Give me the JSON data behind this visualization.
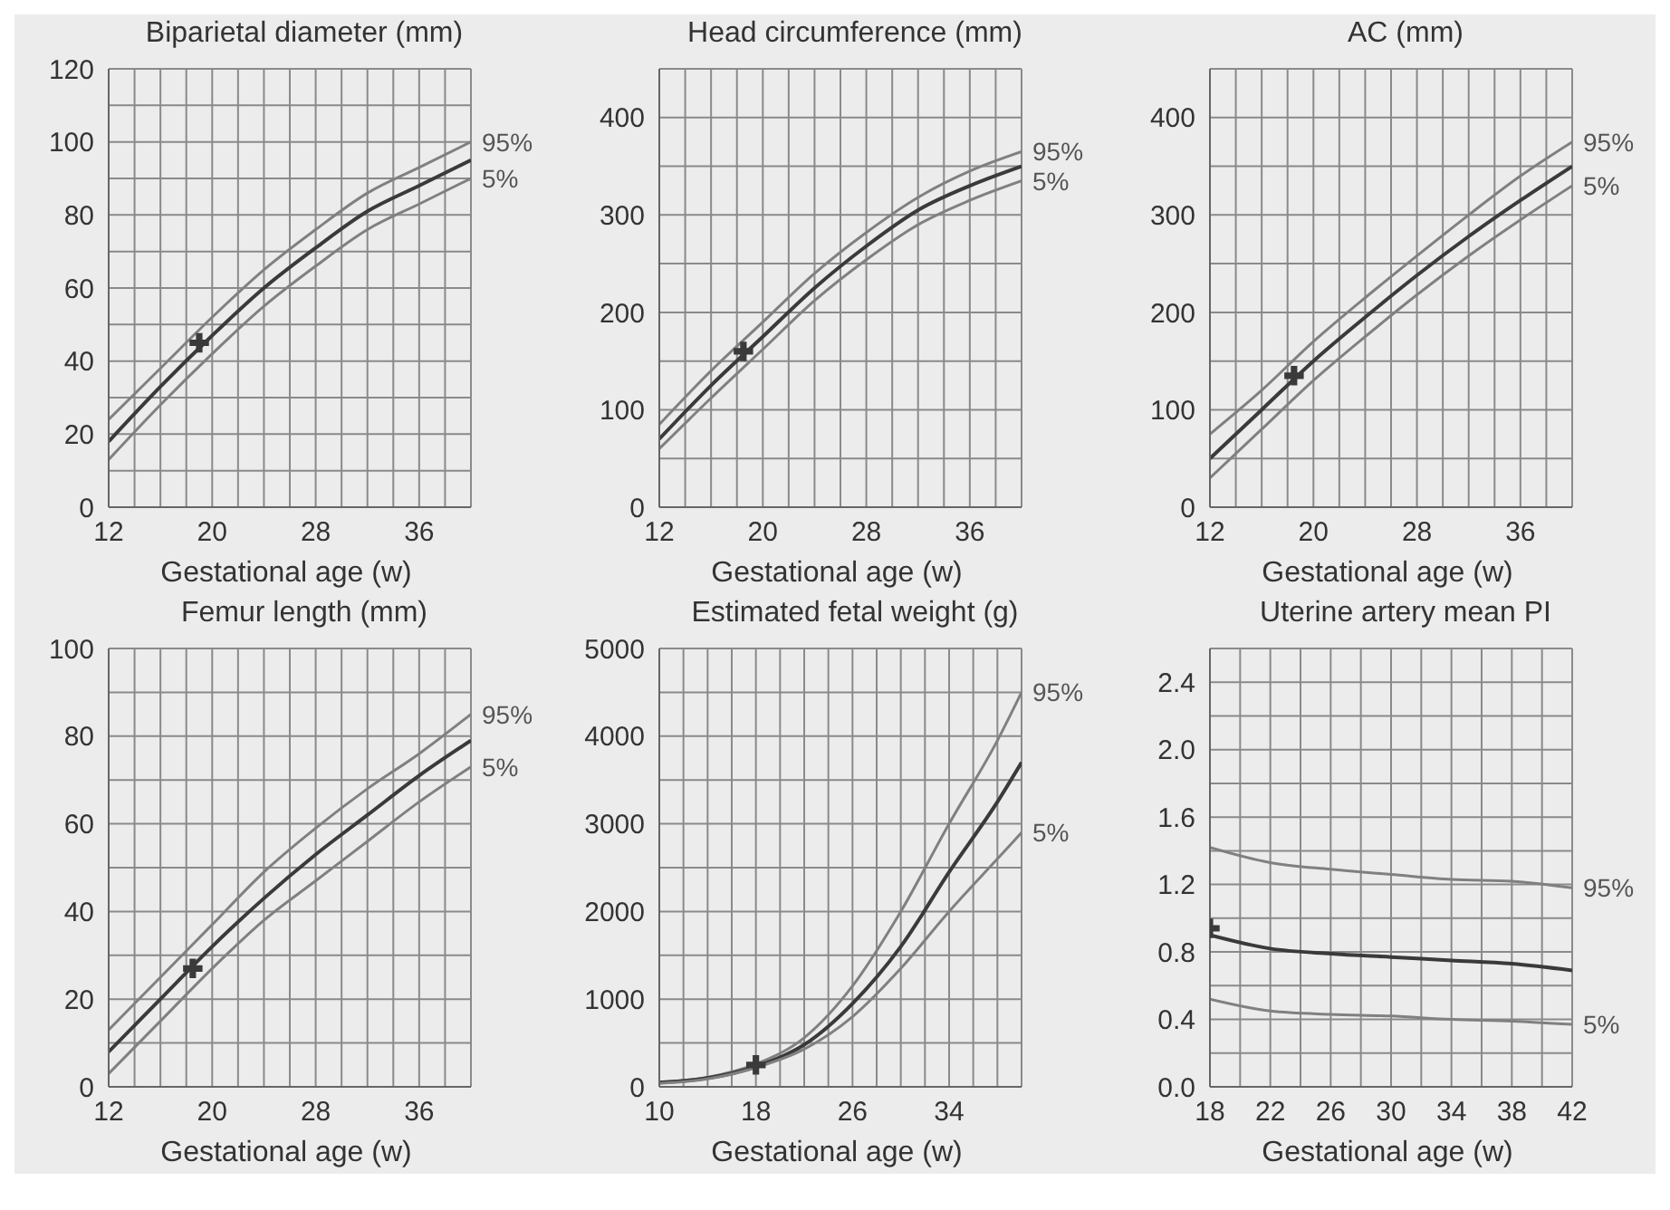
{
  "chart_data": [
    {
      "type": "line",
      "title": "Biparietal diameter (mm)",
      "xlabel": "Gestational age (w)",
      "xlim": [
        12,
        40
      ],
      "xticks": [
        12,
        {
          "value": 14,
          "label": null
        },
        {
          "value": 16,
          "label": null
        },
        {
          "value": 18,
          "label": null
        },
        20,
        {
          "value": 22,
          "label": null
        },
        {
          "value": 24,
          "label": null
        },
        {
          "value": 26,
          "label": null
        },
        28,
        {
          "value": 30,
          "label": null
        },
        {
          "value": 32,
          "label": null
        },
        {
          "value": 34,
          "label": null
        },
        36,
        {
          "value": 38,
          "label": null
        },
        {
          "value": 40,
          "label": null
        }
      ],
      "ylim": [
        0,
        120
      ],
      "yticks": [
        0,
        {
          "value": 10,
          "label": null
        },
        20,
        {
          "value": 30,
          "label": null
        },
        40,
        {
          "value": 50,
          "label": null
        },
        60,
        {
          "value": 70,
          "label": null
        },
        80,
        {
          "value": 90,
          "label": null
        },
        100,
        {
          "value": 110,
          "label": null
        },
        120
      ],
      "grid": true,
      "marker": "none",
      "series": [
        {
          "name": "95%",
          "color": "#808080",
          "x": [
            12,
            16,
            20,
            24,
            28,
            32,
            36,
            40
          ],
          "values": [
            24,
            38,
            52,
            65,
            76,
            86,
            93,
            100
          ]
        },
        {
          "color": "#3a3a3a",
          "x": [
            12,
            16,
            20,
            24,
            28,
            32,
            36,
            40
          ],
          "values": [
            18,
            33,
            47,
            60,
            71,
            81,
            88,
            95
          ]
        },
        {
          "name": "5%",
          "color": "#808080",
          "x": [
            12,
            16,
            20,
            24,
            28,
            32,
            36,
            40
          ],
          "values": [
            13,
            28,
            42,
            55,
            66,
            76,
            83,
            90
          ]
        },
        {
          "type": "scatter",
          "marker": "cross",
          "color": "#3a3a3a",
          "x": [
            19
          ],
          "values": [
            45
          ]
        }
      ]
    },
    {
      "type": "line",
      "title": "Head circumference (mm)",
      "xlabel": "Gestational age (w)",
      "xlim": [
        12,
        40
      ],
      "xticks": [
        12,
        {
          "value": 14,
          "label": null
        },
        {
          "value": 16,
          "label": null
        },
        {
          "value": 18,
          "label": null
        },
        20,
        {
          "value": 22,
          "label": null
        },
        {
          "value": 24,
          "label": null
        },
        {
          "value": 26,
          "label": null
        },
        28,
        {
          "value": 30,
          "label": null
        },
        {
          "value": 32,
          "label": null
        },
        {
          "value": 34,
          "label": null
        },
        36,
        {
          "value": 38,
          "label": null
        },
        {
          "value": 40,
          "label": null
        }
      ],
      "ylim": [
        0,
        450
      ],
      "yticks": [
        0,
        {
          "value": 50,
          "label": null
        },
        100,
        {
          "value": 150,
          "label": null
        },
        200,
        {
          "value": 250,
          "label": null
        },
        300,
        {
          "value": 350,
          "label": null
        },
        400,
        {
          "value": 450,
          "label": null
        }
      ],
      "grid": true,
      "marker": "none",
      "series": [
        {
          "name": "95%",
          "color": "#808080",
          "x": [
            12,
            16,
            20,
            24,
            28,
            32,
            36,
            40
          ],
          "values": [
            85,
            140,
            190,
            240,
            282,
            318,
            345,
            365
          ]
        },
        {
          "color": "#3a3a3a",
          "x": [
            12,
            16,
            20,
            24,
            28,
            32,
            36,
            40
          ],
          "values": [
            70,
            125,
            175,
            225,
            268,
            305,
            330,
            350
          ]
        },
        {
          "name": "5%",
          "color": "#808080",
          "x": [
            12,
            16,
            20,
            24,
            28,
            32,
            36,
            40
          ],
          "values": [
            60,
            112,
            162,
            212,
            254,
            290,
            315,
            335
          ]
        },
        {
          "type": "scatter",
          "marker": "cross",
          "color": "#3a3a3a",
          "x": [
            18.5
          ],
          "values": [
            160
          ]
        }
      ]
    },
    {
      "type": "line",
      "title": "AC (mm)",
      "xlabel": "Gestational age (w)",
      "xlim": [
        12,
        40
      ],
      "xticks": [
        12,
        {
          "value": 14,
          "label": null
        },
        {
          "value": 16,
          "label": null
        },
        {
          "value": 18,
          "label": null
        },
        20,
        {
          "value": 22,
          "label": null
        },
        {
          "value": 24,
          "label": null
        },
        {
          "value": 26,
          "label": null
        },
        28,
        {
          "value": 30,
          "label": null
        },
        {
          "value": 32,
          "label": null
        },
        {
          "value": 34,
          "label": null
        },
        36,
        {
          "value": 38,
          "label": null
        },
        {
          "value": 40,
          "label": null
        }
      ],
      "ylim": [
        0,
        450
      ],
      "yticks": [
        0,
        {
          "value": 50,
          "label": null
        },
        100,
        {
          "value": 150,
          "label": null
        },
        200,
        {
          "value": 250,
          "label": null
        },
        300,
        {
          "value": 350,
          "label": null
        },
        400,
        {
          "value": 450,
          "label": null
        }
      ],
      "grid": true,
      "marker": "none",
      "series": [
        {
          "name": "95%",
          "color": "#808080",
          "x": [
            12,
            16,
            20,
            24,
            28,
            32,
            36,
            40
          ],
          "values": [
            75,
            120,
            170,
            215,
            258,
            300,
            340,
            375
          ]
        },
        {
          "color": "#3a3a3a",
          "x": [
            12,
            16,
            20,
            24,
            28,
            32,
            36,
            40
          ],
          "values": [
            50,
            100,
            150,
            195,
            238,
            278,
            315,
            350
          ]
        },
        {
          "name": "5%",
          "color": "#808080",
          "x": [
            12,
            16,
            20,
            24,
            28,
            32,
            36,
            40
          ],
          "values": [
            30,
            80,
            130,
            175,
            218,
            258,
            295,
            330
          ]
        },
        {
          "type": "scatter",
          "marker": "cross",
          "color": "#3a3a3a",
          "x": [
            18.5
          ],
          "values": [
            135
          ]
        }
      ]
    },
    {
      "type": "line",
      "title": "Femur length (mm)",
      "xlabel": "Gestational age (w)",
      "xlim": [
        12,
        40
      ],
      "xticks": [
        12,
        {
          "value": 14,
          "label": null
        },
        {
          "value": 16,
          "label": null
        },
        {
          "value": 18,
          "label": null
        },
        20,
        {
          "value": 22,
          "label": null
        },
        {
          "value": 24,
          "label": null
        },
        {
          "value": 26,
          "label": null
        },
        28,
        {
          "value": 30,
          "label": null
        },
        {
          "value": 32,
          "label": null
        },
        {
          "value": 34,
          "label": null
        },
        36,
        {
          "value": 38,
          "label": null
        },
        {
          "value": 40,
          "label": null
        }
      ],
      "ylim": [
        0,
        100
      ],
      "yticks": [
        0,
        {
          "value": 10,
          "label": null
        },
        20,
        {
          "value": 30,
          "label": null
        },
        40,
        {
          "value": 50,
          "label": null
        },
        60,
        {
          "value": 70,
          "label": null
        },
        80,
        {
          "value": 90,
          "label": null
        },
        100
      ],
      "grid": true,
      "marker": "none",
      "series": [
        {
          "name": "95%",
          "color": "#808080",
          "x": [
            12,
            16,
            20,
            24,
            28,
            32,
            36,
            40
          ],
          "values": [
            13,
            25,
            37,
            49,
            59,
            68,
            76,
            85
          ]
        },
        {
          "color": "#3a3a3a",
          "x": [
            12,
            16,
            20,
            24,
            28,
            32,
            36,
            40
          ],
          "values": [
            8,
            20,
            32,
            43,
            53,
            62,
            71,
            79
          ]
        },
        {
          "name": "5%",
          "color": "#808080",
          "x": [
            12,
            16,
            20,
            24,
            28,
            32,
            36,
            40
          ],
          "values": [
            3,
            15,
            27,
            38,
            47,
            56,
            65,
            73
          ]
        },
        {
          "type": "scatter",
          "marker": "cross",
          "color": "#3a3a3a",
          "x": [
            18.5
          ],
          "values": [
            27
          ]
        }
      ]
    },
    {
      "type": "line",
      "title": "Estimated fetal weight (g)",
      "xlabel": "Gestational age (w)",
      "xlim": [
        10,
        40
      ],
      "xticks": [
        10,
        {
          "value": 12,
          "label": null
        },
        {
          "value": 14,
          "label": null
        },
        {
          "value": 16,
          "label": null
        },
        18,
        {
          "value": 20,
          "label": null
        },
        {
          "value": 22,
          "label": null
        },
        {
          "value": 24,
          "label": null
        },
        26,
        {
          "value": 28,
          "label": null
        },
        {
          "value": 30,
          "label": null
        },
        {
          "value": 32,
          "label": null
        },
        34,
        {
          "value": 36,
          "label": null
        },
        {
          "value": 38,
          "label": null
        },
        {
          "value": 40,
          "label": null
        }
      ],
      "ylim": [
        0,
        5000
      ],
      "yticks": [
        0,
        {
          "value": 500,
          "label": null
        },
        1000,
        {
          "value": 1500,
          "label": null
        },
        2000,
        {
          "value": 2500,
          "label": null
        },
        3000,
        {
          "value": 3500,
          "label": null
        },
        4000,
        {
          "value": 4500,
          "label": null
        },
        5000
      ],
      "grid": true,
      "marker": "none",
      "series": [
        {
          "name": "95%",
          "color": "#808080",
          "x": [
            10,
            14,
            18,
            22,
            26,
            30,
            34,
            38,
            40
          ],
          "values": [
            50,
            110,
            260,
            560,
            1150,
            2000,
            3000,
            3950,
            4500
          ]
        },
        {
          "color": "#3a3a3a",
          "x": [
            10,
            14,
            18,
            22,
            26,
            30,
            34,
            38,
            40
          ],
          "values": [
            50,
            100,
            230,
            480,
            950,
            1600,
            2450,
            3250,
            3700
          ]
        },
        {
          "name": "5%",
          "color": "#808080",
          "x": [
            10,
            14,
            18,
            22,
            26,
            30,
            34,
            38,
            40
          ],
          "values": [
            40,
            90,
            220,
            430,
            800,
            1350,
            2000,
            2600,
            2900
          ]
        },
        {
          "type": "scatter",
          "marker": "cross",
          "color": "#3a3a3a",
          "x": [
            18
          ],
          "values": [
            250
          ]
        }
      ]
    },
    {
      "type": "line",
      "title": "Uterine artery mean PI",
      "xlabel": "Gestational age (w)",
      "xlim": [
        18,
        42
      ],
      "xticks": [
        18,
        {
          "value": 20,
          "label": null
        },
        22,
        {
          "value": 24,
          "label": null
        },
        26,
        {
          "value": 28,
          "label": null
        },
        30,
        {
          "value": 32,
          "label": null
        },
        34,
        {
          "value": 36,
          "label": null
        },
        38,
        {
          "value": 40,
          "label": null
        },
        42
      ],
      "ylim": [
        0,
        2.6
      ],
      "yticks": [
        {
          "value": 0,
          "label": "0.0"
        },
        {
          "value": 0.2,
          "label": null
        },
        0.4,
        {
          "value": 0.6,
          "label": null
        },
        0.8,
        {
          "value": 1,
          "label": null
        },
        1.2,
        {
          "value": 1.4,
          "label": null
        },
        1.6,
        {
          "value": 1.8,
          "label": null
        },
        {
          "value": 2,
          "label": "2.0"
        },
        {
          "value": 2.2,
          "label": null
        },
        2.4,
        {
          "value": 2.6,
          "label": null
        }
      ],
      "grid": true,
      "marker": "none",
      "series": [
        {
          "name": "95%",
          "color": "#808080",
          "x": [
            18,
            22,
            26,
            30,
            34,
            38,
            42
          ],
          "values": [
            1.42,
            1.33,
            1.29,
            1.26,
            1.23,
            1.22,
            1.18
          ]
        },
        {
          "color": "#3a3a3a",
          "x": [
            18,
            22,
            26,
            30,
            34,
            38,
            42
          ],
          "values": [
            0.9,
            0.82,
            0.79,
            0.77,
            0.75,
            0.73,
            0.69
          ]
        },
        {
          "name": "5%",
          "color": "#808080",
          "x": [
            18,
            22,
            26,
            30,
            34,
            38,
            42
          ],
          "values": [
            0.52,
            0.45,
            0.43,
            0.42,
            0.4,
            0.39,
            0.37
          ]
        },
        {
          "type": "scatter",
          "marker": "cross",
          "color": "#3a3a3a",
          "x": [
            18
          ],
          "values": [
            0.94
          ]
        }
      ]
    }
  ]
}
